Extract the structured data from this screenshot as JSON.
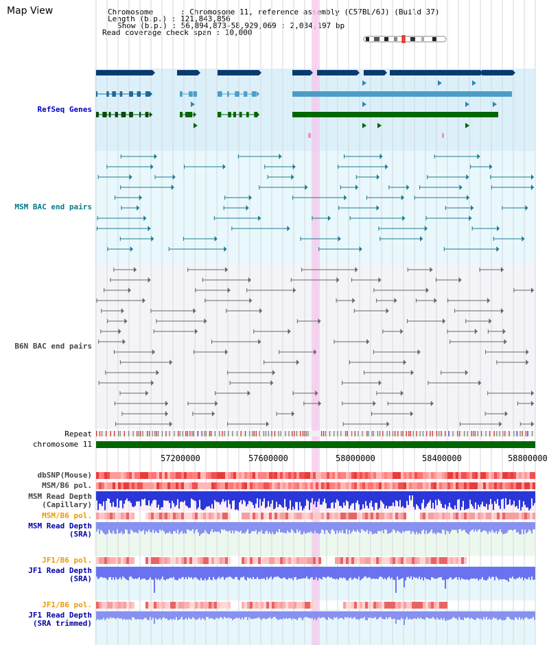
{
  "header": {
    "title": "Map View",
    "info_lines": [
      "Chromosome      : Chromosome 11, reference assembly (C57BL/6J) (Build 37)",
      "Length (b.p.) : 121,843,856",
      "Show (b.p.) : 56,894,873-58,929,069 : 2,034,197 bp",
      "Read coverage check span : 10,000"
    ]
  },
  "tracks": {
    "refseq": "RefSeq Genes",
    "msm_bac": "MSM BAC end pairs",
    "b6n_bac": "B6N BAC end pairs",
    "repeat": "Repeat",
    "chromosome": "chromosome 11",
    "dbsnp": "dbSNP(Mouse)",
    "msm_b6_pol_1": "MSM/B6 pol.",
    "msm_read_depth_cap": [
      "MSM Read Depth",
      "(Capillary)"
    ],
    "msm_b6_pol_2": "MSM/B6 pol.",
    "msm_read_depth_sra": [
      "MSM Read Depth",
      "(SRA)"
    ],
    "jf1_b6_pol_1": "JF1/B6 pol.",
    "jf1_read_depth_sra": [
      "JF1 Read Depth",
      "(SRA)"
    ],
    "jf1_b6_pol_2": "JF1/B6 pol.",
    "jf1_read_depth_trim": [
      "JF1 Read Depth",
      "(SRA trimmed)"
    ]
  },
  "axis": {
    "ticks": [
      "57200000",
      "57600000",
      "58000000",
      "58400000",
      "58800000"
    ]
  },
  "colors": {
    "refseq_bg": "#dcf0fa",
    "msm_bg": "#e8f8fc",
    "b6n_bg": "#f4f4f8",
    "highlight": "#f6c8ec",
    "refseq_label": "#0000cc",
    "msm_label": "#007a8c",
    "b6n_label": "#444444",
    "pol_label": "#ee9900"
  }
}
